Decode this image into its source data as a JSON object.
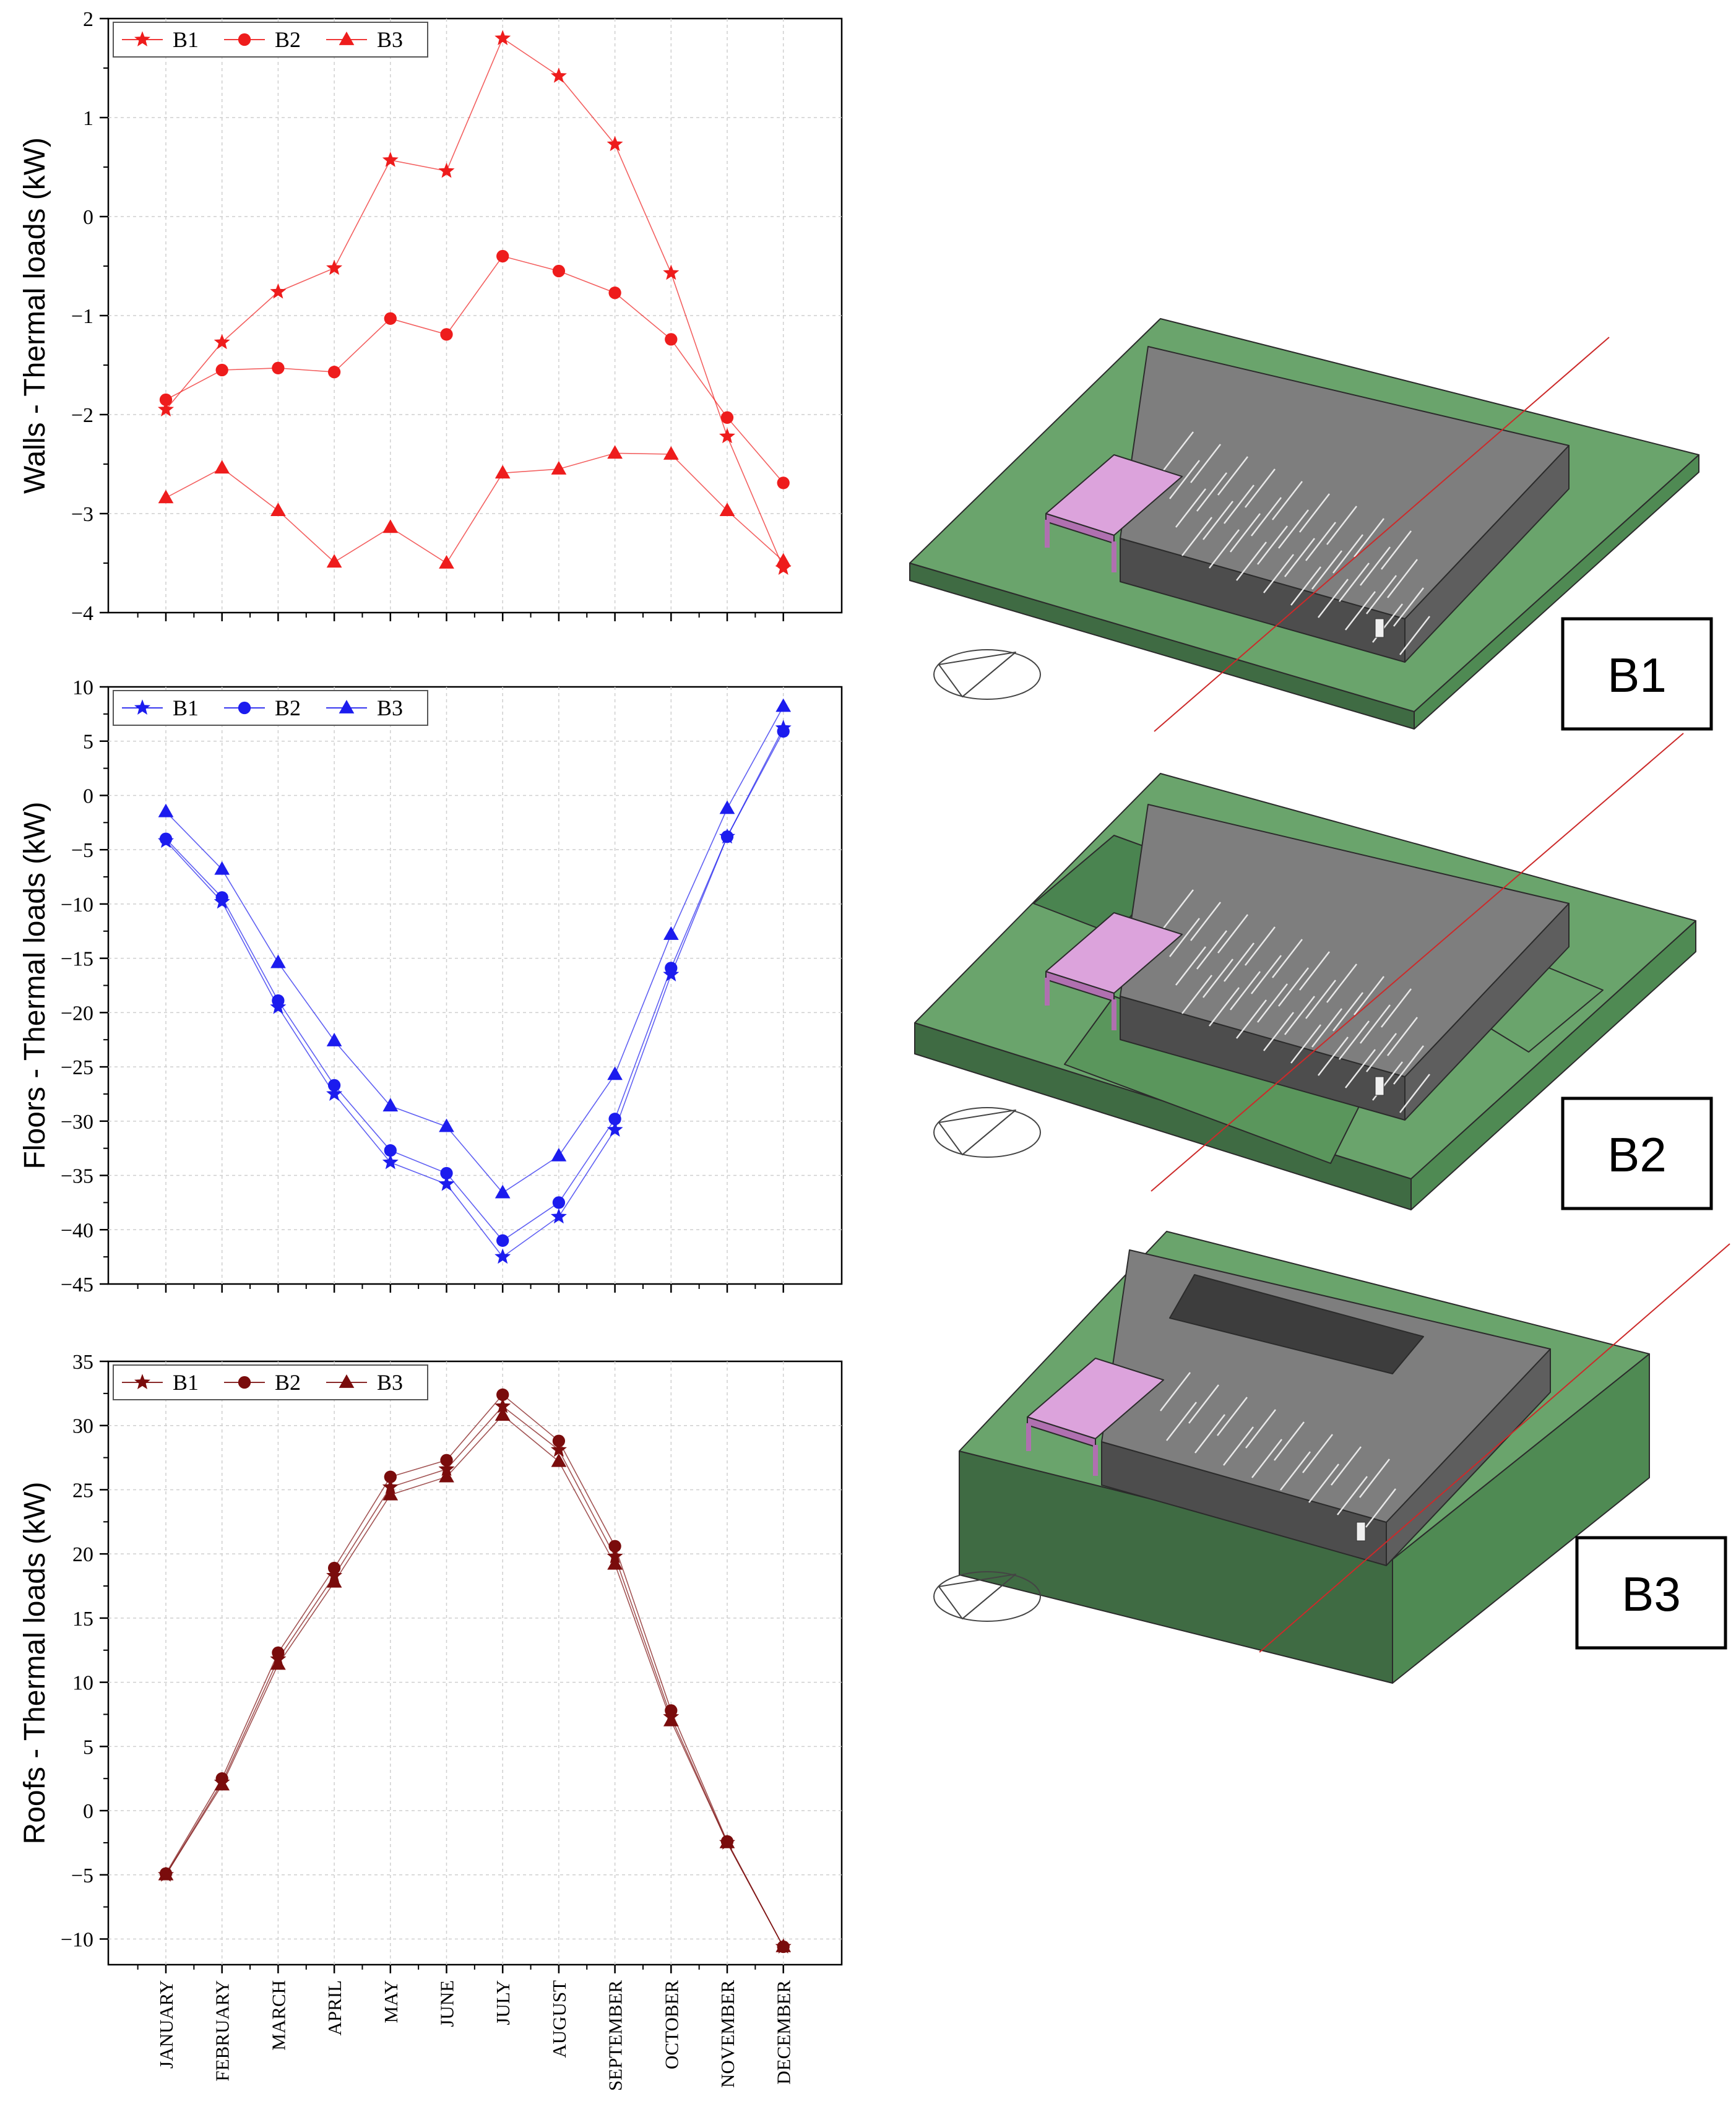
{
  "months": [
    "JANUARY",
    "FEBRUARY",
    "MARCH",
    "APRIL",
    "MAY",
    "JUNE",
    "JULY",
    "AUGUST",
    "SEPTEMBER",
    "OCTOBER",
    "NOVEMBER",
    "DECEMBER"
  ],
  "chart_data": [
    {
      "type": "line",
      "ylabel": "Walls - Thermal loads (kW)",
      "ylim": [
        -4,
        2
      ],
      "yticks": [
        2,
        1,
        0,
        -1,
        -2,
        -3,
        -4
      ],
      "ytick_labels": [
        "2",
        "1",
        "0",
        "−1",
        "−2",
        "−3",
        "−4"
      ],
      "color": "#ee1c1c",
      "grid": true,
      "legend_position": "top-left",
      "series": [
        {
          "name": "B1",
          "marker": "star",
          "values": [
            -1.95,
            -1.27,
            -0.76,
            -0.52,
            0.57,
            0.46,
            1.8,
            1.42,
            0.73,
            -0.57,
            -2.22,
            -3.55
          ]
        },
        {
          "name": "B2",
          "marker": "circle",
          "values": [
            -1.85,
            -1.55,
            -1.53,
            -1.57,
            -1.03,
            -1.19,
            -0.4,
            -0.55,
            -0.77,
            -1.24,
            -2.03,
            -2.69
          ]
        },
        {
          "name": "B3",
          "marker": "triangle",
          "values": [
            -2.84,
            -2.54,
            -2.97,
            -3.49,
            -3.14,
            -3.5,
            -2.59,
            -2.55,
            -2.39,
            -2.4,
            -2.97,
            -3.48
          ]
        }
      ]
    },
    {
      "type": "line",
      "ylabel": "Floors - Thermal loads (kW)",
      "ylim": [
        -45,
        10
      ],
      "yticks": [
        10,
        5,
        0,
        -5,
        -10,
        -15,
        -20,
        -25,
        -30,
        -35,
        -40,
        -45
      ],
      "ytick_labels": [
        "10",
        "5",
        "0",
        "−5",
        "−10",
        "−15",
        "−20",
        "−25",
        "−30",
        "−35",
        "−40",
        "−45"
      ],
      "color": "#1c1cee",
      "grid": true,
      "legend_position": "top-left",
      "series": [
        {
          "name": "B1",
          "marker": "star",
          "values": [
            -4.2,
            -9.8,
            -19.5,
            -27.5,
            -33.8,
            -35.8,
            -42.5,
            -38.8,
            -30.8,
            -16.5,
            -3.8,
            6.2
          ]
        },
        {
          "name": "B2",
          "marker": "circle",
          "values": [
            -4.0,
            -9.4,
            -18.9,
            -26.7,
            -32.7,
            -34.8,
            -41.0,
            -37.5,
            -29.8,
            -15.9,
            -3.8,
            5.9
          ]
        },
        {
          "name": "B3",
          "marker": "triangle",
          "values": [
            -1.5,
            -6.8,
            -15.4,
            -22.6,
            -28.6,
            -30.5,
            -36.6,
            -33.2,
            -25.7,
            -12.8,
            -1.2,
            8.2
          ]
        }
      ]
    },
    {
      "type": "line",
      "ylabel": "Roofs - Thermal loads (kW)",
      "ylim": [
        -12,
        35
      ],
      "yticks": [
        35,
        30,
        25,
        20,
        15,
        10,
        5,
        0,
        -5,
        -10
      ],
      "ytick_labels": [
        "35",
        "30",
        "25",
        "20",
        "15",
        "10",
        "5",
        "0",
        "−5",
        "−10"
      ],
      "color": "#7a0c0c",
      "grid": true,
      "legend_position": "top-left",
      "series": [
        {
          "name": "B1",
          "marker": "star",
          "values": [
            -5.0,
            2.2,
            11.8,
            18.3,
            25.2,
            26.6,
            31.5,
            28.1,
            19.8,
            7.3,
            -2.5,
            -10.6
          ]
        },
        {
          "name": "B2",
          "marker": "circle",
          "values": [
            -4.9,
            2.5,
            12.3,
            18.9,
            26.0,
            27.3,
            32.4,
            28.8,
            20.6,
            7.8,
            -2.4,
            -10.6
          ]
        },
        {
          "name": "B3",
          "marker": "triangle",
          "values": [
            -5.0,
            2.0,
            11.4,
            17.8,
            24.6,
            26.0,
            30.8,
            27.2,
            19.2,
            7.0,
            -2.5,
            -10.6
          ]
        }
      ]
    }
  ],
  "diagram_labels": [
    "B1",
    "B2",
    "B3"
  ],
  "colors": {
    "ground": "#6aa46c",
    "ground_side": "#3f6b43",
    "roof": "#7e7e7e",
    "roof_side": "#4d4d4d",
    "canopy": "#dca3dc",
    "section_line": "#cc2a2a"
  }
}
